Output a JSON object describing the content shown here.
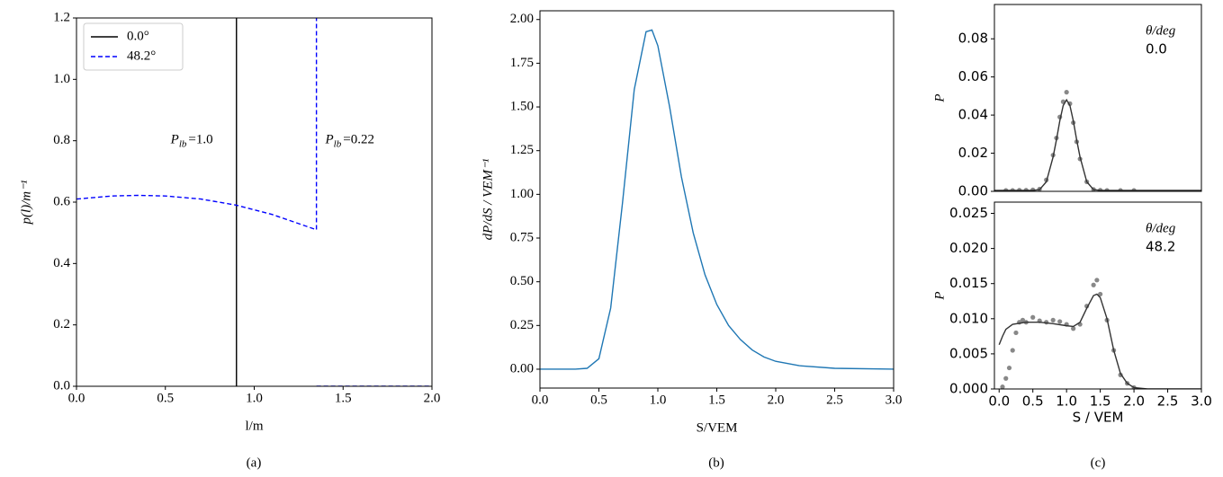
{
  "chart_data": [
    {
      "type": "line",
      "xlabel": "l/m",
      "ylabel": "p(l)/m⁻¹",
      "caption": "(a)",
      "xlim": [
        0,
        2
      ],
      "ylim": [
        0,
        1.2
      ],
      "xticks": [
        {
          "value": 0,
          "label": "0.0"
        },
        0.5,
        {
          "value": 1,
          "label": "1.0"
        },
        1.5,
        {
          "value": 2,
          "label": "2.0"
        }
      ],
      "yticks": [
        {
          "value": 0,
          "label": "0.0"
        },
        0.2,
        0.4,
        0.6,
        0.8,
        {
          "value": 1,
          "label": "1.0"
        },
        1.2
      ],
      "legend": "upper left",
      "series": [
        {
          "name": "0.0°",
          "color": "#000000",
          "style": "solid",
          "type": "line",
          "x": [
            0.9,
            0.9
          ],
          "values": [
            0,
            1.2
          ]
        },
        {
          "name": "48.2°",
          "color": "#0000ff",
          "style": "dashed",
          "type": "line",
          "x": [
            0,
            0.2,
            0.35,
            0.5,
            0.7,
            0.9,
            1.1,
            1.35,
            1.35,
            null,
            1.35,
            2.0
          ],
          "values": [
            0.61,
            0.62,
            0.622,
            0.62,
            0.61,
            0.59,
            0.56,
            0.51,
            1.2,
            null,
            0,
            0
          ]
        }
      ],
      "annotations": [
        {
          "symbol": "P",
          "subscript": "lb",
          "text": "=1.0"
        },
        {
          "symbol": "P",
          "subscript": "lb",
          "text": "=0.22"
        }
      ]
    },
    {
      "type": "line",
      "xlabel": "S/VEM",
      "ylabel": "dP/dS / VEM⁻¹",
      "caption": "(b)",
      "xlim": [
        0,
        3
      ],
      "ylim": [
        -0.108,
        2.05
      ],
      "xticks": [
        {
          "value": 0,
          "label": "0.0"
        },
        0.5,
        {
          "value": 1,
          "label": "1.0"
        },
        1.5,
        {
          "value": 2,
          "label": "2.0"
        },
        2.5,
        {
          "value": 3,
          "label": "3.0"
        }
      ],
      "yticks": [
        {
          "value": 0,
          "label": "0.00"
        },
        0.25,
        {
          "value": 0.5,
          "label": "0.50"
        },
        0.75,
        {
          "value": 1,
          "label": "1.00"
        },
        1.25,
        {
          "value": 1.5,
          "label": "1.50"
        },
        1.75,
        {
          "value": 2,
          "label": "2.00"
        }
      ],
      "series": [
        {
          "color": "#1f77b4",
          "style": "solid",
          "type": "line",
          "x": [
            0,
            0.3,
            0.4,
            0.5,
            0.6,
            0.7,
            0.8,
            0.9,
            0.95,
            1.0,
            1.1,
            1.2,
            1.3,
            1.4,
            1.5,
            1.6,
            1.7,
            1.8,
            1.9,
            2.0,
            2.2,
            2.5,
            3.0
          ],
          "values": [
            0,
            0,
            0.005,
            0.06,
            0.35,
            0.95,
            1.6,
            1.93,
            1.94,
            1.85,
            1.5,
            1.1,
            0.78,
            0.54,
            0.37,
            0.25,
            0.17,
            0.11,
            0.07,
            0.045,
            0.02,
            0.005,
            0
          ]
        }
      ]
    },
    {
      "type": "line",
      "ylabel": "P",
      "legend_title": "θ/deg",
      "label": "0.0",
      "xlim": [
        -0.07,
        3
      ],
      "ylim": [
        0,
        0.098
      ],
      "yticks": [
        {
          "value": 0,
          "label": "0.00"
        },
        0.02,
        0.04,
        0.06,
        0.08
      ],
      "series": [
        {
          "color": "#888888",
          "style": "solid",
          "type": "scatter",
          "x": [
            0.1,
            0.2,
            0.3,
            0.4,
            0.5,
            0.6,
            0.7,
            0.8,
            0.85,
            0.9,
            0.95,
            1.0,
            1.05,
            1.1,
            1.15,
            1.2,
            1.3,
            1.4,
            1.5,
            1.6,
            1.8,
            2.0
          ],
          "values": [
            0.0005,
            0.0005,
            0.0006,
            0.0006,
            0.0008,
            0.0012,
            0.006,
            0.019,
            0.028,
            0.039,
            0.047,
            0.052,
            0.046,
            0.036,
            0.026,
            0.017,
            0.005,
            0.001,
            0.0006,
            0.0005,
            0.0005,
            0.0005
          ]
        },
        {
          "color": "#333333",
          "style": "solid",
          "type": "line",
          "x": [
            -0.07,
            0.5,
            0.6,
            0.7,
            0.8,
            0.85,
            0.9,
            0.95,
            1.0,
            1.05,
            1.1,
            1.15,
            1.2,
            1.3,
            1.4,
            1.5,
            3.0
          ],
          "values": [
            0.0005,
            0.0005,
            0.0009,
            0.005,
            0.018,
            0.027,
            0.037,
            0.045,
            0.048,
            0.045,
            0.037,
            0.027,
            0.018,
            0.005,
            0.0009,
            0.0005,
            0.0005
          ]
        }
      ]
    },
    {
      "type": "line",
      "xlabel": "S / VEM",
      "ylabel": "P",
      "caption": "(c)",
      "legend_title": "θ/deg",
      "label": "48.2",
      "xlim": [
        -0.07,
        3
      ],
      "ylim": [
        0,
        0.0266
      ],
      "xticks": [
        {
          "value": 0,
          "label": "0.0"
        },
        0.5,
        {
          "value": 1,
          "label": "1.0"
        },
        1.5,
        {
          "value": 2,
          "label": "2.0"
        },
        2.5,
        {
          "value": 3,
          "label": "3.0"
        }
      ],
      "yticks": [
        {
          "value": 0,
          "label": "0.000"
        },
        0.005,
        {
          "value": 0.01,
          "label": "0.010"
        },
        0.015,
        {
          "value": 0.02,
          "label": "0.020"
        },
        0.025
      ],
      "series": [
        {
          "color": "#888888",
          "style": "solid",
          "type": "scatter",
          "x": [
            0.05,
            0.1,
            0.15,
            0.2,
            0.25,
            0.3,
            0.35,
            0.4,
            0.5,
            0.6,
            0.7,
            0.8,
            0.9,
            1.0,
            1.1,
            1.2,
            1.3,
            1.4,
            1.45,
            1.5,
            1.6,
            1.7,
            1.8,
            1.9,
            2.0
          ],
          "values": [
            0.0003,
            0.0015,
            0.003,
            0.0055,
            0.008,
            0.0095,
            0.0098,
            0.0095,
            0.0102,
            0.0097,
            0.0095,
            0.0098,
            0.0096,
            0.0092,
            0.0086,
            0.0092,
            0.0118,
            0.0148,
            0.0155,
            0.0135,
            0.0098,
            0.0055,
            0.002,
            0.0008,
            0.0002
          ]
        },
        {
          "color": "#333333",
          "style": "solid",
          "type": "line",
          "x": [
            0,
            0.05,
            0.1,
            0.2,
            0.4,
            0.6,
            0.8,
            1.0,
            1.1,
            1.2,
            1.3,
            1.4,
            1.45,
            1.5,
            1.6,
            1.7,
            1.8,
            1.9,
            2.0,
            2.2,
            3.0
          ],
          "values": [
            0.0063,
            0.0075,
            0.0085,
            0.0092,
            0.0095,
            0.0095,
            0.0093,
            0.009,
            0.0089,
            0.0095,
            0.0115,
            0.0133,
            0.0135,
            0.013,
            0.01,
            0.0055,
            0.0022,
            0.0008,
            0.0002,
            0,
            0
          ]
        }
      ]
    }
  ]
}
